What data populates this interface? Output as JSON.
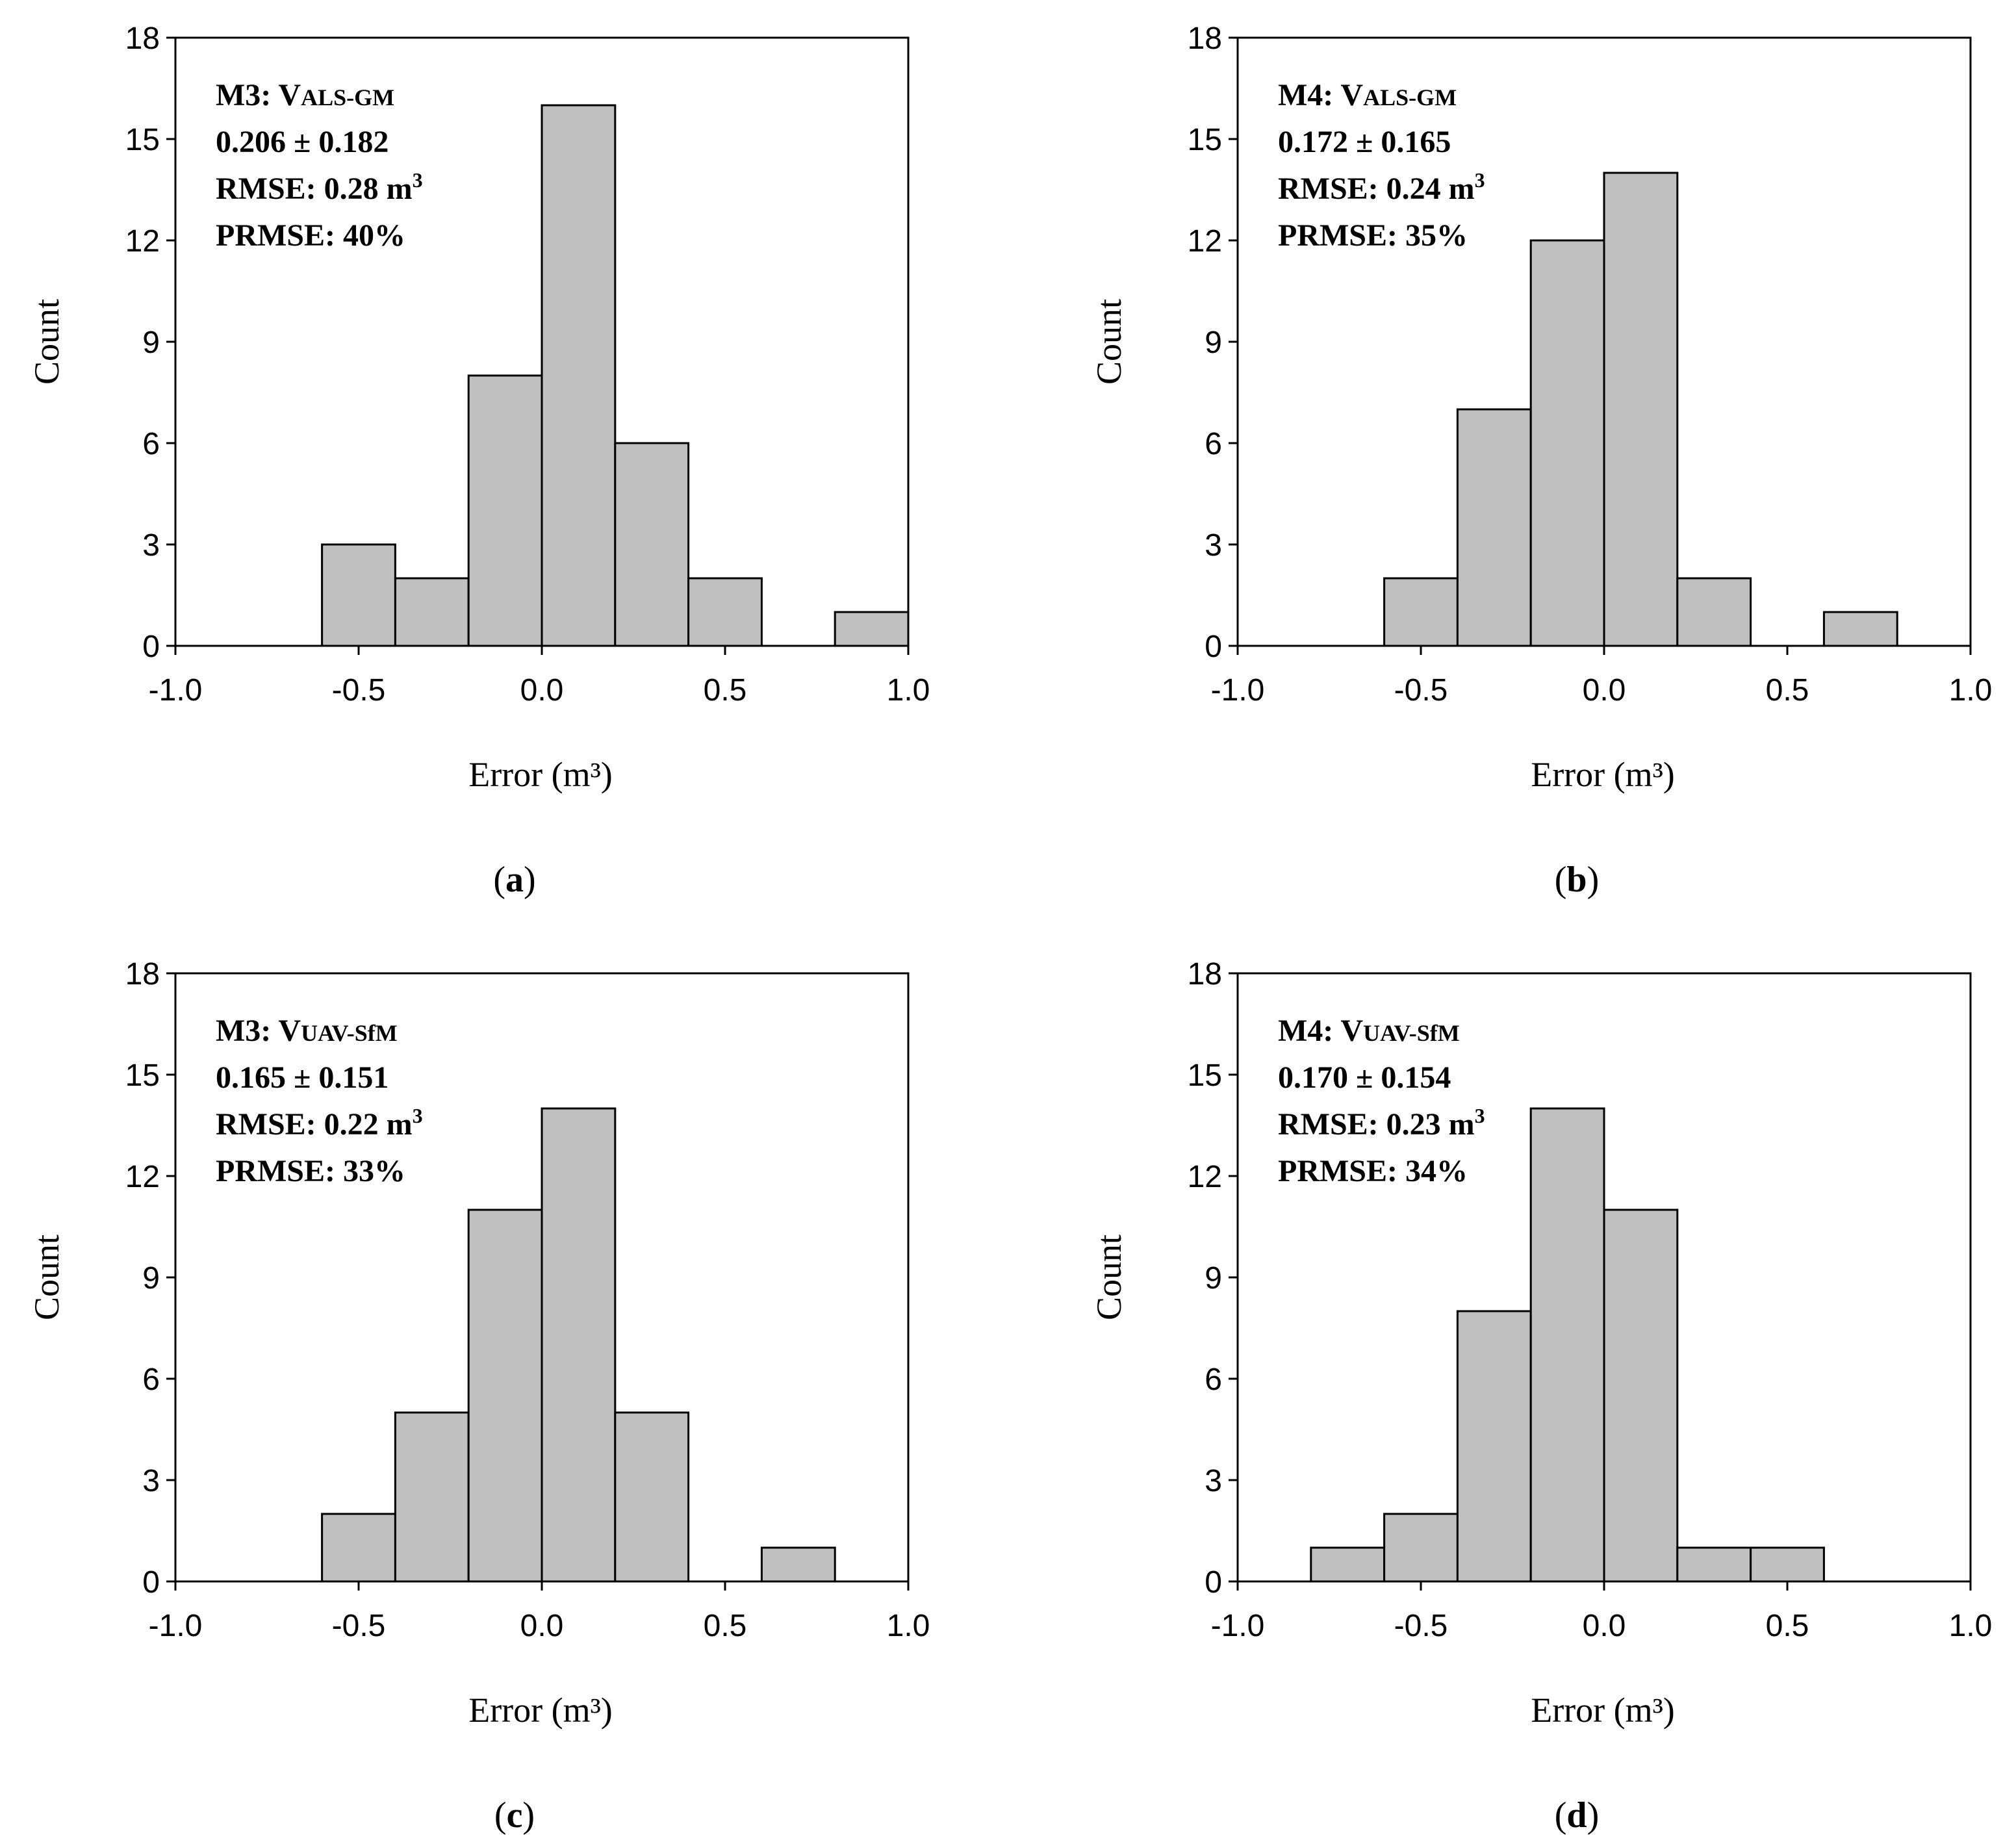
{
  "chart_data": [
    {
      "id": "a",
      "type": "bar",
      "caption_letter": "a",
      "xlabel": "Error (m³)",
      "ylabel": "Count",
      "xlim": [
        -1.0,
        1.0
      ],
      "ylim": [
        0,
        18
      ],
      "xticks": [
        -1.0,
        -0.5,
        0.0,
        0.5,
        1.0
      ],
      "xtick_labels": [
        "-1.0",
        "-0.5",
        "0.0",
        "0.5",
        "1.0"
      ],
      "yticks": [
        0,
        3,
        6,
        9,
        12,
        15,
        18
      ],
      "ytick_labels": [
        "0",
        "3",
        "6",
        "9",
        "12",
        "15",
        "18"
      ],
      "bins": [
        {
          "x0": -0.6,
          "x1": -0.4,
          "count": 3
        },
        {
          "x0": -0.4,
          "x1": -0.2,
          "count": 2
        },
        {
          "x0": -0.2,
          "x1": 0.0,
          "count": 8
        },
        {
          "x0": 0.0,
          "x1": 0.2,
          "count": 16
        },
        {
          "x0": 0.2,
          "x1": 0.4,
          "count": 6
        },
        {
          "x0": 0.4,
          "x1": 0.6,
          "count": 2
        },
        {
          "x0": 0.8,
          "x1": 1.0,
          "count": 1
        }
      ],
      "annotation": {
        "model": "M3:",
        "var_main": "V",
        "var_sub": "ALS-GM",
        "mean_sd": "0.206 ± 0.182",
        "rmse_label": "RMSE: 0.28 m",
        "rmse_sup": "3",
        "prmse": "PRMSE: 40%"
      }
    },
    {
      "id": "b",
      "type": "bar",
      "caption_letter": "b",
      "xlabel": "Error (m³)",
      "ylabel": "Count",
      "xlim": [
        -1.0,
        1.0
      ],
      "ylim": [
        0,
        18
      ],
      "xticks": [
        -1.0,
        -0.5,
        0.0,
        0.5,
        1.0
      ],
      "xtick_labels": [
        "-1.0",
        "-0.5",
        "0.0",
        "0.5",
        "1.0"
      ],
      "yticks": [
        0,
        3,
        6,
        9,
        12,
        15,
        18
      ],
      "ytick_labels": [
        "0",
        "3",
        "6",
        "9",
        "12",
        "15",
        "18"
      ],
      "bins": [
        {
          "x0": -0.6,
          "x1": -0.4,
          "count": 2
        },
        {
          "x0": -0.4,
          "x1": -0.2,
          "count": 7
        },
        {
          "x0": -0.2,
          "x1": 0.0,
          "count": 12
        },
        {
          "x0": 0.0,
          "x1": 0.2,
          "count": 14
        },
        {
          "x0": 0.2,
          "x1": 0.4,
          "count": 2
        },
        {
          "x0": 0.6,
          "x1": 0.8,
          "count": 1
        }
      ],
      "annotation": {
        "model": "M4:",
        "var_main": "V",
        "var_sub": "ALS-GM",
        "mean_sd": "0.172 ± 0.165",
        "rmse_label": "RMSE: 0.24 m",
        "rmse_sup": "3",
        "prmse": "PRMSE: 35%"
      }
    },
    {
      "id": "c",
      "type": "bar",
      "caption_letter": "c",
      "xlabel": "Error (m³)",
      "ylabel": "Count",
      "xlim": [
        -1.0,
        1.0
      ],
      "ylim": [
        0,
        18
      ],
      "xticks": [
        -1.0,
        -0.5,
        0.0,
        0.5,
        1.0
      ],
      "xtick_labels": [
        "-1.0",
        "-0.5",
        "0.0",
        "0.5",
        "1.0"
      ],
      "yticks": [
        0,
        3,
        6,
        9,
        12,
        15,
        18
      ],
      "ytick_labels": [
        "0",
        "3",
        "6",
        "9",
        "12",
        "15",
        "18"
      ],
      "bins": [
        {
          "x0": -0.6,
          "x1": -0.4,
          "count": 2
        },
        {
          "x0": -0.4,
          "x1": -0.2,
          "count": 5
        },
        {
          "x0": -0.2,
          "x1": 0.0,
          "count": 11
        },
        {
          "x0": 0.0,
          "x1": 0.2,
          "count": 14
        },
        {
          "x0": 0.2,
          "x1": 0.4,
          "count": 5
        },
        {
          "x0": 0.6,
          "x1": 0.8,
          "count": 1
        }
      ],
      "annotation": {
        "model": "M3:",
        "var_main": "V",
        "var_sub": "UAV-SfM",
        "mean_sd": "0.165 ± 0.151",
        "rmse_label": "RMSE: 0.22 m",
        "rmse_sup": "3",
        "prmse": "PRMSE: 33%"
      }
    },
    {
      "id": "d",
      "type": "bar",
      "caption_letter": "d",
      "xlabel": "Error (m³)",
      "ylabel": "Count",
      "xlim": [
        -1.0,
        1.0
      ],
      "ylim": [
        0,
        18
      ],
      "xticks": [
        -1.0,
        -0.5,
        0.0,
        0.5,
        1.0
      ],
      "xtick_labels": [
        "-1.0",
        "-0.5",
        "0.0",
        "0.5",
        "1.0"
      ],
      "yticks": [
        0,
        3,
        6,
        9,
        12,
        15,
        18
      ],
      "ytick_labels": [
        "0",
        "3",
        "6",
        "9",
        "12",
        "15",
        "18"
      ],
      "bins": [
        {
          "x0": -0.8,
          "x1": -0.6,
          "count": 1
        },
        {
          "x0": -0.6,
          "x1": -0.4,
          "count": 2
        },
        {
          "x0": -0.4,
          "x1": -0.2,
          "count": 8
        },
        {
          "x0": -0.2,
          "x1": 0.0,
          "count": 14
        },
        {
          "x0": 0.0,
          "x1": 0.2,
          "count": 11
        },
        {
          "x0": 0.2,
          "x1": 0.4,
          "count": 1
        },
        {
          "x0": 0.4,
          "x1": 0.6,
          "count": 1
        }
      ],
      "annotation": {
        "model": "M4:",
        "var_main": "V",
        "var_sub": "UAV-SfM",
        "mean_sd": "0.170 ± 0.154",
        "rmse_label": "RMSE: 0.23 m",
        "rmse_sup": "3",
        "prmse": "PRMSE: 34%"
      }
    }
  ]
}
